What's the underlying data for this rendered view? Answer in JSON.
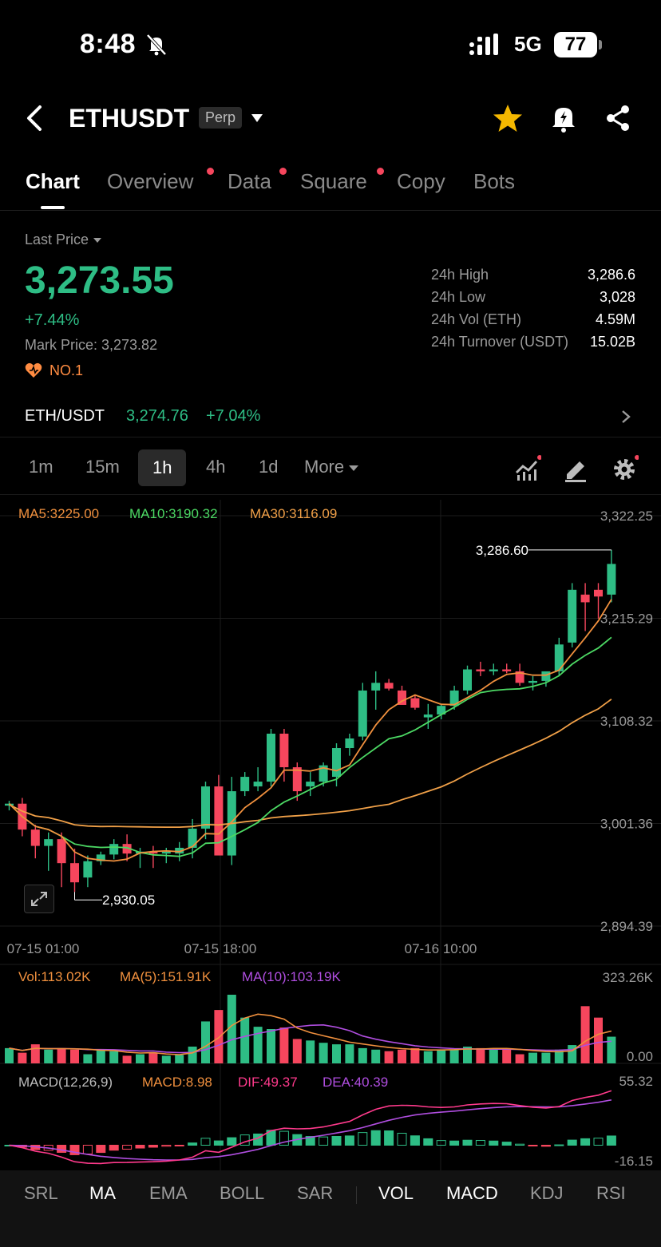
{
  "status": {
    "time": "8:48",
    "network": "5G",
    "battery": "77"
  },
  "header": {
    "symbol": "ETHUSDT",
    "badge": "Perp"
  },
  "tabs": [
    {
      "label": "Chart",
      "active": true,
      "dot": false
    },
    {
      "label": "Overview",
      "active": false,
      "dot": true
    },
    {
      "label": "Data",
      "active": false,
      "dot": true
    },
    {
      "label": "Square",
      "active": false,
      "dot": true
    },
    {
      "label": "Copy",
      "active": false,
      "dot": false
    },
    {
      "label": "Bots",
      "active": false,
      "dot": false
    }
  ],
  "price": {
    "label": "Last Price",
    "value": "3,273.55",
    "change": "+7.44%",
    "mark": "Mark Price: 3,273.82",
    "rank": "NO.1"
  },
  "stats": [
    {
      "label": "24h High",
      "value": "3,286.6"
    },
    {
      "label": "24h Low",
      "value": "3,028"
    },
    {
      "label": "24h Vol (ETH)",
      "value": "4.59M"
    },
    {
      "label": "24h Turnover (USDT)",
      "value": "15.02B"
    }
  ],
  "spot": {
    "pair": "ETH/USDT",
    "price": "3,274.76",
    "change": "+7.04%"
  },
  "intervals": [
    "1m",
    "15m",
    "1h",
    "4h",
    "1d",
    "More"
  ],
  "active_interval": "1h",
  "ma_legend": {
    "ma5": "MA5:3225.00",
    "ma10": "MA10:3190.32",
    "ma30": "MA30:3116.09"
  },
  "vol_legend": {
    "vol": "Vol:113.02K",
    "ma5": "MA(5):151.91K",
    "ma10": "MA(10):103.19K"
  },
  "macd_legend": {
    "title": "MACD(12,26,9)",
    "macd": "MACD:8.98",
    "dif": "DIF:49.37",
    "dea": "DEA:40.39"
  },
  "indicators": [
    {
      "label": "SRL",
      "on": false
    },
    {
      "label": "MA",
      "on": true
    },
    {
      "label": "EMA",
      "on": false
    },
    {
      "label": "BOLL",
      "on": false
    },
    {
      "label": "SAR",
      "on": false
    },
    {
      "label": "VOL",
      "on": true
    },
    {
      "label": "MACD",
      "on": true
    },
    {
      "label": "KDJ",
      "on": false
    },
    {
      "label": "RSI",
      "on": false
    }
  ],
  "colors": {
    "up": "#2ebd85",
    "down": "#f6465d",
    "ma5": "#f0903e",
    "ma10": "#4cd964",
    "ma30": "#f0a048",
    "purple": "#b04ee0",
    "pink": "#ff3a8c"
  },
  "chart_data": {
    "type": "candlestick",
    "price_axis": {
      "labels": [
        "3,322.25",
        "3,215.29",
        "3,108.32",
        "3,001.36",
        "2,894.39"
      ],
      "max": 3322.25,
      "min": 2894.39
    },
    "time_labels": [
      "07-15 01:00",
      "07-15 18:00",
      "07-16 10:00"
    ],
    "high_marker": "3,286.60",
    "low_marker": "2,930.05",
    "candles": [
      [
        3020,
        3025,
        3015,
        3022
      ],
      [
        3022,
        3028,
        2988,
        2995
      ],
      [
        2995,
        3000,
        2965,
        2978
      ],
      [
        2978,
        2992,
        2952,
        2985
      ],
      [
        2985,
        2992,
        2935,
        2960
      ],
      [
        2960,
        2975,
        2930,
        2940
      ],
      [
        2945,
        2968,
        2935,
        2962
      ],
      [
        2962,
        2972,
        2958,
        2969
      ],
      [
        2969,
        2985,
        2964,
        2980
      ],
      [
        2980,
        2990,
        2962,
        2970
      ],
      [
        2970,
        2976,
        2955,
        2972
      ],
      [
        2972,
        2978,
        2955,
        2970
      ],
      [
        2970,
        2976,
        2960,
        2972
      ],
      [
        2970,
        2982,
        2962,
        2976
      ],
      [
        2976,
        3006,
        2965,
        2996
      ],
      [
        2996,
        3045,
        2985,
        3040
      ],
      [
        3040,
        3052,
        2970,
        2968
      ],
      [
        2968,
        3050,
        2958,
        3035
      ],
      [
        3035,
        3055,
        3030,
        3050
      ],
      [
        3040,
        3060,
        3035,
        3045
      ],
      [
        3045,
        3100,
        3040,
        3095
      ],
      [
        3095,
        3100,
        3045,
        3060
      ],
      [
        3060,
        3065,
        3025,
        3035
      ],
      [
        3040,
        3055,
        3030,
        3045
      ],
      [
        3045,
        3065,
        3040,
        3062
      ],
      [
        3050,
        3085,
        3040,
        3080
      ],
      [
        3080,
        3095,
        3072,
        3090
      ],
      [
        3092,
        3148,
        3088,
        3140
      ],
      [
        3140,
        3160,
        3120,
        3148
      ],
      [
        3148,
        3152,
        3140,
        3142
      ],
      [
        3140,
        3145,
        3128,
        3125
      ],
      [
        3132,
        3135,
        3120,
        3122
      ],
      [
        3112,
        3126,
        3100,
        3115
      ],
      [
        3115,
        3126,
        3110,
        3124
      ],
      [
        3124,
        3145,
        3120,
        3140
      ],
      [
        3140,
        3166,
        3136,
        3162
      ],
      [
        3162,
        3170,
        3155,
        3160
      ],
      [
        3160,
        3168,
        3156,
        3162
      ],
      [
        3162,
        3168,
        3158,
        3160
      ],
      [
        3160,
        3168,
        3145,
        3148
      ],
      [
        3148,
        3155,
        3140,
        3150
      ],
      [
        3150,
        3158,
        3144,
        3160
      ],
      [
        3160,
        3195,
        3156,
        3188
      ],
      [
        3190,
        3252,
        3185,
        3245
      ],
      [
        3240,
        3252,
        3202,
        3232
      ],
      [
        3245,
        3252,
        3215,
        3238
      ],
      [
        3240,
        3286.6,
        3232,
        3272
      ]
    ],
    "volumes": [
      20,
      14,
      25,
      18,
      20,
      18,
      12,
      18,
      16,
      10,
      12,
      14,
      10,
      11,
      22,
      55,
      70,
      90,
      60,
      48,
      45,
      47,
      32,
      30,
      27,
      25,
      25,
      20,
      18,
      16,
      18,
      20,
      16,
      18,
      18,
      22,
      20,
      20,
      18,
      12,
      14,
      14,
      18,
      24,
      75,
      60,
      35
    ]
  }
}
